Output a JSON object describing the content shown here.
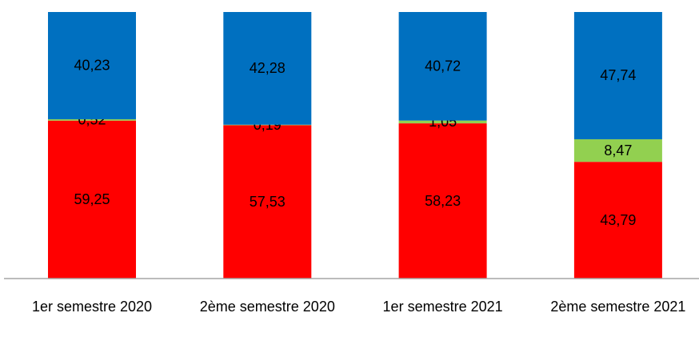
{
  "chart_data": {
    "type": "stacked_bar",
    "categories": [
      "1er semestre 2020",
      "2ème semestre 2020",
      "1er semestre 2021",
      "2ème semestre 2021"
    ],
    "series": [
      {
        "color": "#ff0000",
        "values": [
          59.25,
          57.53,
          58.23,
          43.79
        ],
        "value_labels": [
          "59,25",
          "57,53",
          "58,23",
          "43,79"
        ]
      },
      {
        "color": "#92d050",
        "values": [
          0.52,
          0.19,
          1.05,
          8.47
        ],
        "value_labels": [
          "0,52",
          "0,19",
          "1,05",
          "8,47"
        ]
      },
      {
        "color": "#0070c0",
        "values": [
          40.23,
          42.28,
          40.72,
          47.74
        ],
        "value_labels": [
          "40,23",
          "42,28",
          "40,72",
          "47,74"
        ]
      }
    ],
    "ylim": [
      0,
      100
    ]
  }
}
